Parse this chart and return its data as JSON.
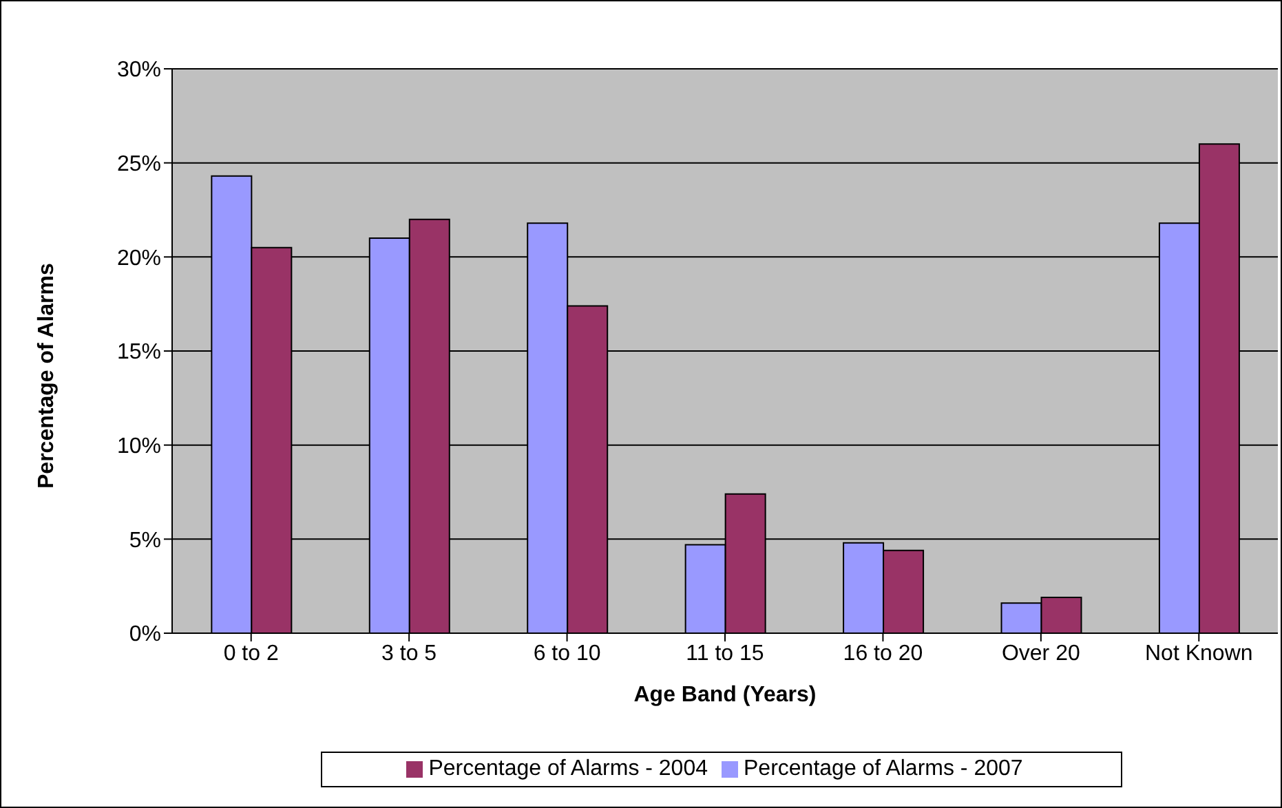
{
  "chart_data": {
    "type": "bar",
    "xlabel": "Age Band (Years)",
    "ylabel": "Percentage of Alarms",
    "categories": [
      "0 to 2",
      "3 to 5",
      "6 to 10",
      "11 to 15",
      "16 to 20",
      "Over 20",
      "Not Known"
    ],
    "series": [
      {
        "name": "Percentage of Alarms - 2007",
        "color": "#9999ff",
        "values": [
          24.3,
          21.0,
          21.8,
          4.7,
          4.8,
          1.6,
          21.8
        ]
      },
      {
        "name": "Percentage of Alarms - 2004",
        "color": "#993366",
        "values": [
          20.5,
          22.0,
          17.4,
          7.4,
          4.4,
          1.9,
          26.0
        ]
      }
    ],
    "ylim": [
      0,
      30
    ],
    "yticks": [
      {
        "value": 0,
        "label": "0%"
      },
      {
        "value": 5,
        "label": "5%"
      },
      {
        "value": 10,
        "label": "10%"
      },
      {
        "value": 15,
        "label": "15%"
      },
      {
        "value": 20,
        "label": "20%"
      },
      {
        "value": 25,
        "label": "25%"
      },
      {
        "value": 30,
        "label": "30%"
      }
    ],
    "grid": "y",
    "legend": "bottom"
  }
}
